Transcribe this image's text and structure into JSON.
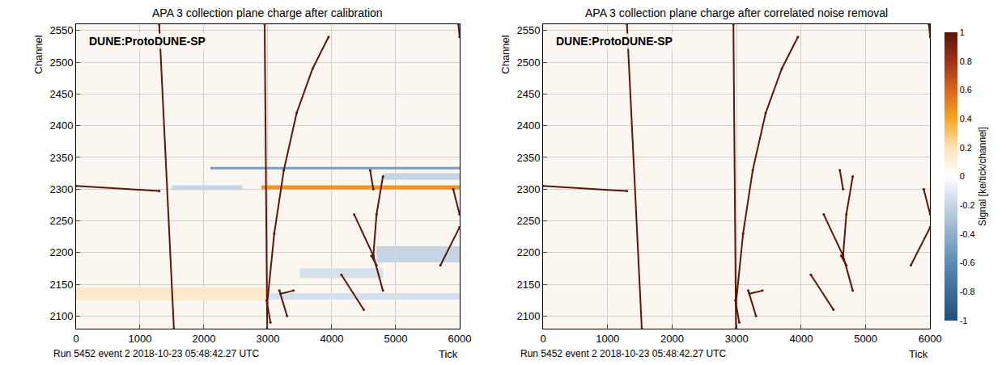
{
  "chart_data": [
    {
      "type": "heatmap",
      "title": "APA 3 collection plane charge after calibration",
      "xlabel": "Tick",
      "ylabel": "Channel",
      "label": "DUNE:ProtoDUNE-SP",
      "caption": "Run 5452 event 2 2018-10-23 05:48:42.27 UTC",
      "xlim": [
        0,
        6000
      ],
      "ylim": [
        2080,
        2560
      ],
      "xticks": [
        0,
        1000,
        2000,
        3000,
        4000,
        5000,
        6000
      ],
      "yticks": [
        2100,
        2150,
        2200,
        2250,
        2300,
        2350,
        2400,
        2450,
        2500,
        2550
      ],
      "grid": true,
      "zlim": [
        -1,
        1
      ],
      "bands": [
        {
          "tick": [
            1500,
            2600
          ],
          "channel": [
            2298,
            2306
          ],
          "signal": -0.2
        },
        {
          "tick": [
            2900,
            6000
          ],
          "channel": [
            2299,
            2306
          ],
          "signal": 0.45
        },
        {
          "tick": [
            2100,
            6000
          ],
          "channel": [
            2331,
            2335
          ],
          "signal": -0.5
        },
        {
          "tick": [
            0,
            3000
          ],
          "channel": [
            2125,
            2145
          ],
          "signal": 0.15
        },
        {
          "tick": [
            3000,
            6000
          ],
          "channel": [
            2126,
            2136
          ],
          "signal": -0.15
        },
        {
          "tick": [
            4700,
            6000
          ],
          "channel": [
            2185,
            2210
          ],
          "signal": -0.2
        },
        {
          "tick": [
            3500,
            4800
          ],
          "channel": [
            2160,
            2175
          ],
          "signal": -0.15
        },
        {
          "tick": [
            4800,
            6000
          ],
          "channel": [
            2315,
            2325
          ],
          "signal": -0.2
        }
      ],
      "tracks": [
        {
          "tick": [
            1300,
            1530
          ],
          "channel": [
            2560,
            2080
          ],
          "signal": 1
        },
        {
          "tick": [
            2950,
            2990
          ],
          "channel": [
            2560,
            2080
          ],
          "signal": 1
        },
        {
          "tick": [
            2990,
            3100,
            3250,
            3450,
            3700,
            3950
          ],
          "channel": [
            2120,
            2230,
            2330,
            2420,
            2490,
            2540
          ],
          "signal": 1
        },
        {
          "tick": [
            0,
            1300
          ],
          "channel": [
            2305,
            2297
          ],
          "signal": 1
        },
        {
          "tick": [
            4650,
            4700,
            4800
          ],
          "channel": [
            2195,
            2260,
            2320
          ],
          "signal": 1
        },
        {
          "tick": [
            4350,
            4650,
            4800
          ],
          "channel": [
            2260,
            2195,
            2140
          ],
          "signal": 1
        },
        {
          "tick": [
            4600,
            4650
          ],
          "channel": [
            2330,
            2300
          ],
          "signal": 1
        },
        {
          "tick": [
            4620,
            4700
          ],
          "channel": [
            2195,
            2180
          ],
          "signal": 1
        },
        {
          "tick": [
            4150,
            4500
          ],
          "channel": [
            2165,
            2110
          ],
          "signal": 1
        },
        {
          "tick": [
            3180,
            3300
          ],
          "channel": [
            2140,
            2100
          ],
          "signal": 1
        },
        {
          "tick": [
            3200,
            3400
          ],
          "channel": [
            2135,
            2140
          ],
          "signal": 1
        },
        {
          "tick": [
            2980,
            3040
          ],
          "channel": [
            2125,
            2090
          ],
          "signal": 1
        },
        {
          "tick": [
            5700,
            6000
          ],
          "channel": [
            2180,
            2240
          ],
          "signal": 1
        },
        {
          "tick": [
            5900,
            6000
          ],
          "channel": [
            2300,
            2260
          ],
          "signal": 1
        },
        {
          "tick": [
            5980,
            6000
          ],
          "channel": [
            2560,
            2540
          ],
          "signal": 1
        }
      ]
    },
    {
      "type": "heatmap",
      "title": "APA 3 collection plane charge after correlated noise removal",
      "xlabel": "Tick",
      "ylabel": "Channel",
      "label": "DUNE:ProtoDUNE-SP",
      "caption": "Run 5452 event 2 2018-10-23 05:48:42.27 UTC",
      "xlim": [
        0,
        6000
      ],
      "ylim": [
        2080,
        2560
      ],
      "xticks": [
        0,
        1000,
        2000,
        3000,
        4000,
        5000,
        6000
      ],
      "yticks": [
        2100,
        2150,
        2200,
        2250,
        2300,
        2350,
        2400,
        2450,
        2500,
        2550
      ],
      "grid": true,
      "zlim": [
        -1,
        1
      ],
      "zticks": [
        -1,
        -0.8,
        -0.6,
        -0.4,
        -0.2,
        0,
        0.2,
        0.4,
        0.6,
        0.8,
        1
      ],
      "zlabel": "Signal [ke/tick/channel]",
      "bands": [],
      "tracks": [
        {
          "tick": [
            1300,
            1530
          ],
          "channel": [
            2560,
            2080
          ],
          "signal": 1
        },
        {
          "tick": [
            2950,
            2990
          ],
          "channel": [
            2560,
            2080
          ],
          "signal": 1
        },
        {
          "tick": [
            2990,
            3100,
            3250,
            3450,
            3700,
            3950
          ],
          "channel": [
            2120,
            2230,
            2330,
            2420,
            2490,
            2540
          ],
          "signal": 1
        },
        {
          "tick": [
            0,
            1300
          ],
          "channel": [
            2305,
            2297
          ],
          "signal": 1
        },
        {
          "tick": [
            4650,
            4700,
            4800
          ],
          "channel": [
            2195,
            2260,
            2320
          ],
          "signal": 1
        },
        {
          "tick": [
            4350,
            4650,
            4800
          ],
          "channel": [
            2260,
            2195,
            2140
          ],
          "signal": 1
        },
        {
          "tick": [
            4600,
            4650
          ],
          "channel": [
            2330,
            2300
          ],
          "signal": 1
        },
        {
          "tick": [
            4620,
            4700
          ],
          "channel": [
            2195,
            2180
          ],
          "signal": 1
        },
        {
          "tick": [
            4150,
            4500
          ],
          "channel": [
            2165,
            2110
          ],
          "signal": 1
        },
        {
          "tick": [
            3180,
            3300
          ],
          "channel": [
            2140,
            2100
          ],
          "signal": 1
        },
        {
          "tick": [
            3200,
            3400
          ],
          "channel": [
            2135,
            2140
          ],
          "signal": 1
        },
        {
          "tick": [
            2980,
            3040
          ],
          "channel": [
            2125,
            2090
          ],
          "signal": 1
        },
        {
          "tick": [
            5700,
            6000
          ],
          "channel": [
            2180,
            2240
          ],
          "signal": 1
        },
        {
          "tick": [
            5900,
            6000
          ],
          "channel": [
            2300,
            2260
          ],
          "signal": 1
        },
        {
          "tick": [
            5980,
            6000
          ],
          "channel": [
            2560,
            2540
          ],
          "signal": 1
        }
      ]
    }
  ]
}
